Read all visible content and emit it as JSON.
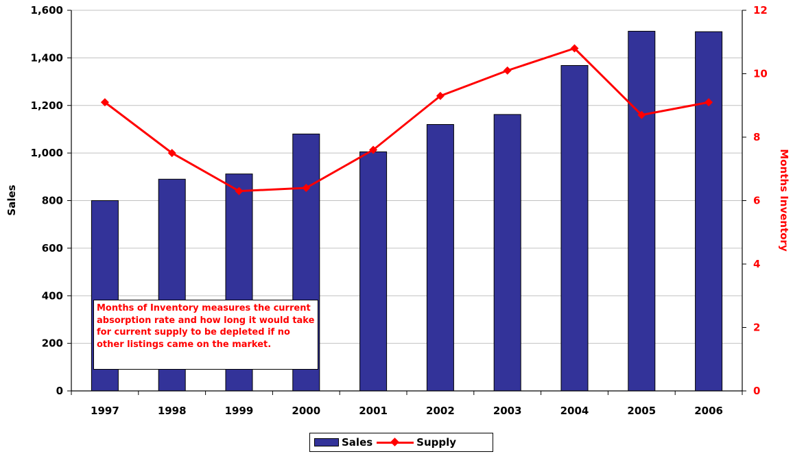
{
  "chart_data": {
    "type": "bar",
    "categories": [
      "1997",
      "1998",
      "1999",
      "2000",
      "2001",
      "2002",
      "2003",
      "2004",
      "2005",
      "2006"
    ],
    "series": [
      {
        "name": "Sales",
        "type": "bar",
        "axis": "left",
        "color": "#333399",
        "values": [
          800,
          890,
          912,
          1080,
          1005,
          1120,
          1162,
          1368,
          1512,
          1510
        ]
      },
      {
        "name": "Supply",
        "type": "line",
        "axis": "right",
        "color": "#ff0000",
        "marker": "diamond",
        "values": [
          9.1,
          7.5,
          6.3,
          6.4,
          7.6,
          9.3,
          10.1,
          10.8,
          8.7,
          9.1
        ]
      }
    ],
    "ylabel": "Sales",
    "y2label": "Months Inventory",
    "ylim": [
      0,
      1600
    ],
    "y2lim": [
      0,
      12
    ],
    "yticks": [
      "0",
      "200",
      "400",
      "600",
      "800",
      "1,000",
      "1,200",
      "1,400",
      "1,600"
    ],
    "y2ticks": [
      "0",
      "2",
      "4",
      "6",
      "8",
      "10",
      "12"
    ],
    "grid": true,
    "legend_position": "bottom",
    "annotation": "Months of Inventory measures the current absorption rate and how long it would take for current supply to be depleted if no other listings came on the market."
  },
  "legend": {
    "sales": "Sales",
    "supply": "Supply"
  }
}
